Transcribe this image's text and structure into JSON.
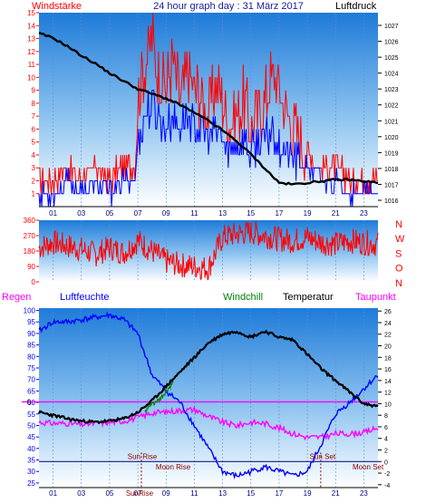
{
  "colors": {
    "wind": "#ff0000",
    "gust": "#ff0000",
    "avg_wind": "#0000ff",
    "pressure": "#000000",
    "direction": "#ff0000",
    "humidity": "#0000ff",
    "temperature": "#000000",
    "dewpoint": "#ff00ff",
    "windchill": "#008000",
    "zero_line": "#ff00ff",
    "sun_line": "#000080",
    "sun_text": "#8b0000",
    "rain_axis": "#ff0000",
    "right_axis": "#0000ff"
  },
  "chart_data": [
    {
      "type": "line",
      "title": "24 hour graph day : 31 März 2017",
      "left_label": "Windstärke",
      "right_label": "Luftdruck",
      "x_ticks": [
        "01",
        "03",
        "05",
        "07",
        "09",
        "11",
        "13",
        "15",
        "17",
        "19",
        "21",
        "23"
      ],
      "y_left_ticks": [
        1,
        2,
        3,
        4,
        5,
        6,
        7,
        8,
        9,
        10,
        11,
        12,
        13,
        14,
        15
      ],
      "y_left_range": [
        0,
        15
      ],
      "y_right_ticks": [
        1016,
        1017,
        1018,
        1019,
        1020,
        1021,
        1022,
        1023,
        1024,
        1025,
        1026,
        1027
      ],
      "y_right_range": [
        1015.6,
        1027.8
      ],
      "series": [
        {
          "role": "pressure",
          "x": [
            0,
            1,
            2,
            3,
            4,
            5,
            6,
            7,
            8,
            9,
            10,
            11,
            12,
            13,
            14,
            15,
            16,
            17,
            18,
            19,
            20,
            21,
            22,
            23,
            24
          ],
          "values": [
            1026.5,
            1026.2,
            1025.7,
            1025.1,
            1024.6,
            1024.0,
            1023.5,
            1023.0,
            1022.7,
            1022.4,
            1022.0,
            1021.5,
            1021.0,
            1020.4,
            1019.7,
            1018.9,
            1018.0,
            1017.1,
            1017.0,
            1017.1,
            1017.2,
            1017.3,
            1017.3,
            1017.2,
            1017.1
          ]
        },
        {
          "role": "gust",
          "x": [
            0,
            1,
            2,
            3,
            4,
            5,
            6,
            6.8,
            7,
            7.5,
            8,
            8.5,
            9,
            9.5,
            10,
            10.5,
            11,
            11.5,
            12,
            12.5,
            13,
            13.5,
            14,
            14.5,
            15,
            15.5,
            16,
            16.5,
            17,
            17.5,
            18,
            18.5,
            19,
            20,
            21,
            22,
            23,
            24
          ],
          "values": [
            2,
            2,
            3,
            2,
            3,
            2,
            3,
            3,
            8,
            11,
            13,
            10,
            9,
            11,
            8,
            10,
            9,
            8,
            7,
            9,
            8,
            6,
            7,
            8,
            6,
            7,
            8,
            10,
            9,
            7,
            6,
            5,
            4,
            3,
            3,
            2,
            2,
            2
          ]
        },
        {
          "role": "avg_wind",
          "x": [
            0,
            1,
            2,
            3,
            4,
            5,
            6,
            6.8,
            7,
            7.5,
            8,
            8.5,
            9,
            9.5,
            10,
            10.5,
            11,
            11.5,
            12,
            12.5,
            13,
            13.5,
            14,
            14.5,
            15,
            15.5,
            16,
            16.5,
            17,
            17.5,
            18,
            18.5,
            19,
            20,
            21,
            22,
            23,
            24
          ],
          "values": [
            1,
            1,
            2,
            1,
            2,
            1,
            2,
            2,
            5,
            7,
            8,
            7,
            6,
            7,
            6,
            7,
            6,
            6,
            5,
            6,
            5,
            4,
            5,
            5,
            4,
            5,
            5,
            6,
            5,
            4,
            4,
            3,
            3,
            2,
            2,
            1,
            1,
            1
          ]
        }
      ]
    },
    {
      "type": "line",
      "y_left_ticks": [
        0,
        90,
        180,
        270,
        360
      ],
      "y_left_range": [
        0,
        360
      ],
      "compass_ticks": [
        "N",
        "W",
        "S",
        "O",
        "N"
      ],
      "x_ticks": [
        "01",
        "03",
        "05",
        "07",
        "09",
        "11",
        "13",
        "15",
        "17",
        "19",
        "21",
        "23"
      ],
      "series": [
        {
          "role": "direction",
          "x": [
            0,
            1,
            2,
            3,
            4,
            5,
            6,
            7,
            8,
            9,
            10,
            11,
            12,
            13,
            14,
            15,
            16,
            17,
            18,
            19,
            20,
            21,
            22,
            23,
            24
          ],
          "values": [
            200,
            230,
            210,
            190,
            160,
            200,
            170,
            240,
            180,
            120,
            100,
            90,
            80,
            260,
            280,
            290,
            270,
            250,
            240,
            260,
            230,
            220,
            240,
            230,
            220
          ]
        }
      ]
    },
    {
      "type": "line",
      "left_label": "Regen",
      "humidity_label": "Luftfeuchte",
      "windchill_label": "Windchill",
      "temperature_label": "Temperatur",
      "dewpoint_label": "Taupunkt",
      "zero_label": "0",
      "x_ticks": [
        "01",
        "03",
        "05",
        "07",
        "09",
        "11",
        "13",
        "15",
        "17",
        "19",
        "21",
        "23"
      ],
      "y_left_ticks": [
        25,
        30,
        35,
        40,
        45,
        50,
        55,
        60,
        65,
        70,
        75,
        80,
        85,
        90,
        95,
        100
      ],
      "y_left_range": [
        23,
        101
      ],
      "y_right_ticks": [
        -4,
        -2,
        0,
        2,
        4,
        6,
        8,
        10,
        12,
        14,
        16,
        18,
        20,
        22,
        24,
        26
      ],
      "y_right_range": [
        -4.5,
        26.5
      ],
      "sun_rise_label": "Sun Rise",
      "sun_set_label": "Sun Set",
      "moon_rise_label": "Moon Rise",
      "moon_set_label": "Moon Set",
      "bottom_sun_rise": "SunRise",
      "sun_rise_hour": 7.25,
      "sun_set_hour": 19.95,
      "series": [
        {
          "role": "humidity",
          "x": [
            0,
            1,
            2,
            3,
            4,
            5,
            6,
            7,
            8,
            9,
            10,
            11,
            12,
            13,
            14,
            15,
            16,
            17,
            18,
            19,
            20,
            21,
            22,
            23,
            24
          ],
          "values": [
            91,
            95,
            95,
            96,
            97,
            98,
            96,
            90,
            72,
            65,
            60,
            50,
            40,
            30,
            28,
            30,
            32,
            30,
            28,
            30,
            42,
            55,
            60,
            66,
            72
          ]
        },
        {
          "role": "temperature",
          "x": [
            0,
            1,
            2,
            3,
            4,
            5,
            6,
            7,
            8,
            9,
            10,
            11,
            12,
            13,
            14,
            15,
            16,
            17,
            18,
            19,
            20,
            21,
            22,
            23,
            24
          ],
          "values": [
            8.5,
            8.0,
            7.4,
            7.0,
            6.8,
            7.0,
            7.4,
            8.5,
            10.5,
            13.0,
            15.5,
            18.0,
            20.5,
            22.0,
            22.5,
            21.5,
            22.5,
            21.5,
            21.0,
            18.5,
            16.0,
            14.0,
            12.0,
            10.0,
            9.5
          ]
        },
        {
          "role": "dewpoint",
          "x": [
            0,
            1,
            2,
            3,
            4,
            5,
            6,
            7,
            8,
            9,
            10,
            11,
            12,
            13,
            14,
            15,
            16,
            17,
            18,
            19,
            20,
            21,
            22,
            23,
            24
          ],
          "values": [
            6.8,
            6.6,
            6.6,
            6.4,
            6.6,
            6.8,
            7.0,
            7.6,
            8.4,
            8.6,
            8.8,
            9.0,
            7.8,
            6.8,
            6.2,
            6.8,
            6.6,
            5.8,
            4.8,
            4.2,
            4.2,
            4.8,
            4.8,
            5.0,
            5.8
          ]
        },
        {
          "role": "windchill",
          "x": [
            7.5,
            8,
            8.5,
            9,
            9.5
          ],
          "values": [
            8.5,
            10.0,
            10.5,
            12.0,
            13.5
          ]
        }
      ]
    }
  ]
}
